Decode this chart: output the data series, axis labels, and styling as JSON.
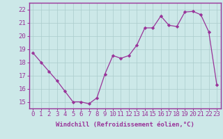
{
  "x": [
    0,
    1,
    2,
    3,
    4,
    5,
    6,
    7,
    8,
    9,
    10,
    11,
    12,
    13,
    14,
    15,
    16,
    17,
    18,
    19,
    20,
    21,
    22,
    23
  ],
  "y": [
    18.7,
    18.0,
    17.3,
    16.6,
    15.8,
    15.0,
    15.0,
    14.85,
    15.3,
    17.1,
    18.5,
    18.3,
    18.5,
    19.3,
    20.6,
    20.6,
    21.5,
    20.8,
    20.7,
    21.8,
    21.85,
    21.6,
    20.3,
    16.3
  ],
  "line_color": "#993399",
  "marker": "D",
  "marker_size": 2.2,
  "bg_color": "#cce8e8",
  "grid_color": "#aacccc",
  "axis_color": "#993399",
  "xlabel": "Windchill (Refroidissement éolien,°C)",
  "xlabel_fontsize": 6.5,
  "tick_label_fontsize": 6.5,
  "ylim": [
    14.5,
    22.5
  ],
  "yticks": [
    15,
    16,
    17,
    18,
    19,
    20,
    21,
    22
  ],
  "xticks": [
    0,
    1,
    2,
    3,
    4,
    5,
    6,
    7,
    8,
    9,
    10,
    11,
    12,
    13,
    14,
    15,
    16,
    17,
    18,
    19,
    20,
    21,
    22,
    23
  ],
  "xlim": [
    -0.5,
    23.5
  ]
}
